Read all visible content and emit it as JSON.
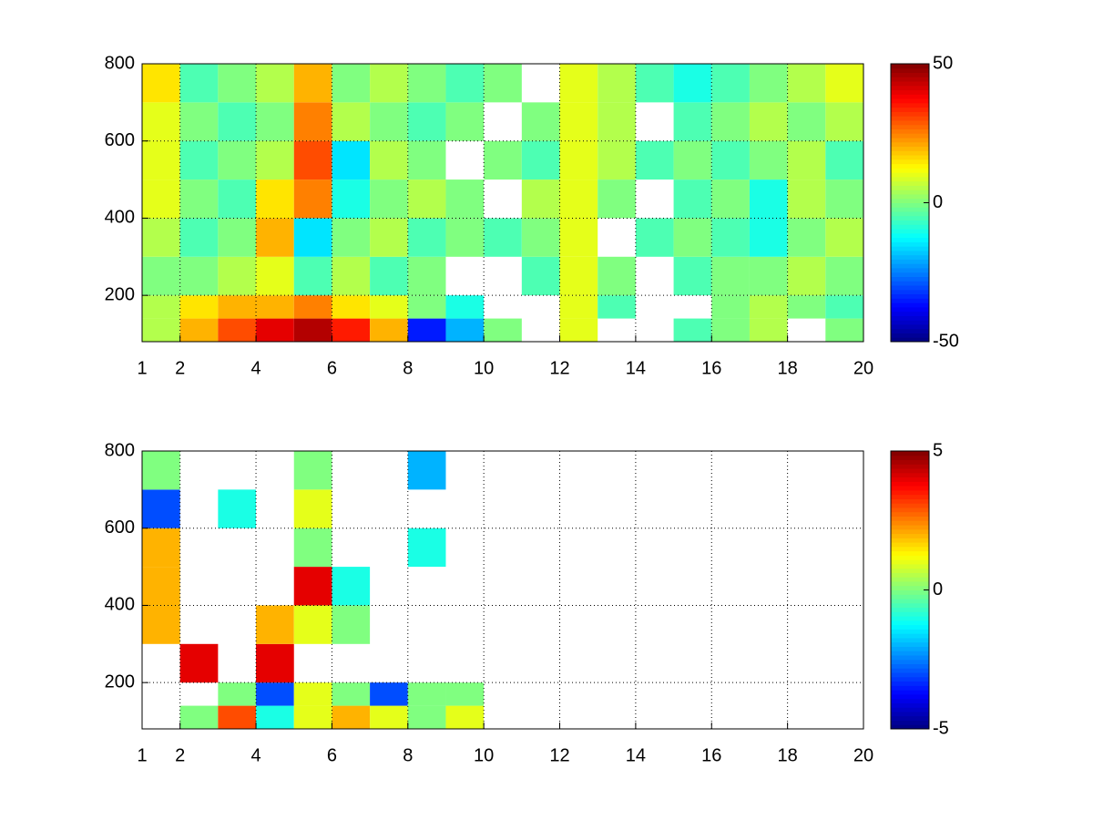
{
  "chart_data": [
    {
      "type": "heatmap",
      "colormap": "jet",
      "grid": true,
      "x": [
        1,
        2,
        3,
        4,
        5,
        6,
        7,
        8,
        9,
        10,
        11,
        12,
        13,
        14,
        15,
        16,
        17,
        18,
        19,
        20
      ],
      "y": [
        80,
        140,
        200,
        300,
        400,
        500,
        600,
        700,
        800
      ],
      "xlim": [
        1,
        20
      ],
      "ylim": [
        80,
        800
      ],
      "xticks": [
        1,
        2,
        4,
        6,
        8,
        10,
        12,
        14,
        16,
        18,
        20
      ],
      "yticks": [
        200,
        400,
        600,
        800
      ],
      "clim": [
        -50,
        50
      ],
      "colorbar_ticks": [
        -50,
        0,
        50
      ],
      "values": [
        [
          5,
          20,
          30,
          40,
          45,
          35,
          20,
          -35,
          -20,
          0,
          null,
          10,
          null,
          null,
          -5,
          0,
          5,
          null,
          0
        ],
        [
          5,
          15,
          20,
          20,
          25,
          15,
          10,
          0,
          -10,
          null,
          null,
          10,
          -5,
          null,
          null,
          0,
          5,
          0,
          -5
        ],
        [
          0,
          0,
          5,
          10,
          -5,
          5,
          -5,
          0,
          null,
          null,
          -5,
          10,
          0,
          null,
          -5,
          0,
          0,
          5,
          0
        ],
        [
          5,
          -5,
          0,
          20,
          -15,
          0,
          5,
          -5,
          0,
          -5,
          0,
          10,
          null,
          -5,
          0,
          -5,
          -10,
          0,
          5
        ],
        [
          10,
          0,
          -5,
          15,
          25,
          -10,
          0,
          5,
          0,
          null,
          5,
          10,
          0,
          null,
          -5,
          0,
          -10,
          5,
          0
        ],
        [
          10,
          -5,
          0,
          5,
          30,
          -15,
          5,
          0,
          null,
          0,
          -5,
          10,
          5,
          -5,
          0,
          -5,
          0,
          5,
          -5
        ],
        [
          10,
          0,
          -5,
          0,
          25,
          5,
          0,
          -5,
          0,
          null,
          0,
          10,
          5,
          null,
          -5,
          0,
          5,
          0,
          5
        ],
        [
          15,
          -5,
          0,
          5,
          20,
          0,
          5,
          0,
          -5,
          0,
          null,
          10,
          5,
          -5,
          -10,
          -5,
          0,
          5,
          10
        ]
      ]
    },
    {
      "type": "heatmap",
      "colormap": "jet",
      "grid": true,
      "x": [
        1,
        2,
        3,
        4,
        5,
        6,
        7,
        8,
        9,
        10,
        11,
        12,
        13,
        14,
        15,
        16,
        17,
        18,
        19,
        20
      ],
      "y": [
        80,
        140,
        200,
        300,
        400,
        500,
        600,
        700,
        800
      ],
      "xlim": [
        1,
        20
      ],
      "ylim": [
        80,
        800
      ],
      "xticks": [
        1,
        2,
        4,
        6,
        8,
        10,
        12,
        14,
        16,
        18,
        20
      ],
      "yticks": [
        200,
        400,
        600,
        800
      ],
      "clim": [
        -5,
        5
      ],
      "colorbar_ticks": [
        -5,
        0,
        5
      ],
      "values": [
        [
          null,
          0,
          3,
          -1,
          1,
          2,
          1,
          0,
          1,
          null,
          null,
          null,
          null,
          null,
          null,
          null,
          null,
          null,
          null
        ],
        [
          null,
          null,
          0,
          -3,
          1,
          0,
          -3,
          0,
          0,
          null,
          null,
          null,
          null,
          null,
          null,
          null,
          null,
          null,
          null
        ],
        [
          null,
          4,
          null,
          4,
          null,
          null,
          null,
          null,
          null,
          null,
          null,
          null,
          null,
          null,
          null,
          null,
          null,
          null,
          null
        ],
        [
          2,
          null,
          null,
          2,
          1,
          0,
          null,
          null,
          null,
          null,
          null,
          null,
          null,
          null,
          null,
          null,
          null,
          null,
          null
        ],
        [
          2,
          null,
          null,
          null,
          4,
          -1,
          null,
          null,
          null,
          null,
          null,
          null,
          null,
          null,
          null,
          null,
          null,
          null,
          null
        ],
        [
          2,
          null,
          null,
          null,
          0,
          null,
          null,
          -1,
          null,
          null,
          null,
          null,
          null,
          null,
          null,
          null,
          null,
          null,
          null
        ],
        [
          -3,
          null,
          -1,
          null,
          1,
          null,
          null,
          null,
          null,
          null,
          null,
          null,
          null,
          null,
          null,
          null,
          null,
          null,
          null
        ],
        [
          0,
          null,
          null,
          null,
          0,
          null,
          null,
          -2,
          null,
          null,
          null,
          null,
          null,
          null,
          null,
          null,
          null,
          null,
          null
        ]
      ]
    }
  ]
}
